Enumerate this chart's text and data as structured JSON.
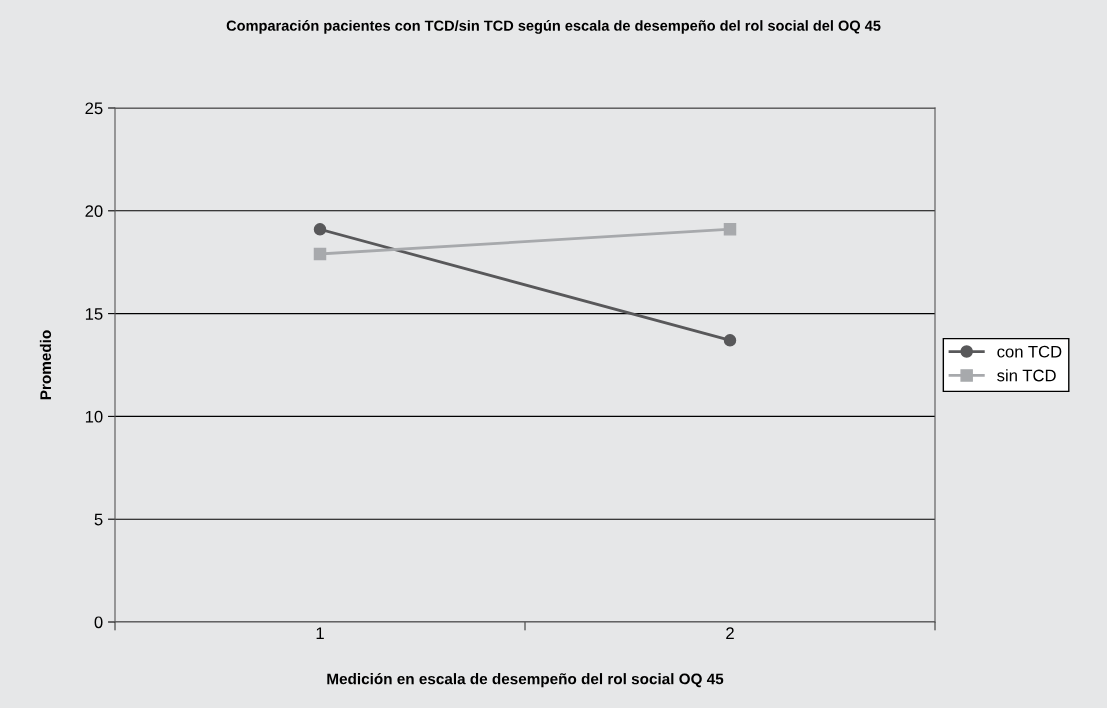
{
  "chart_data": {
    "type": "line",
    "title": "Comparación pacientes con TCD/sin TCD según escala de desempeño del rol social del OQ 45",
    "xlabel": "Medición en escala de desempeño del rol social OQ 45",
    "ylabel": "Promedio",
    "categories": [
      "1",
      "2"
    ],
    "series": [
      {
        "name": "con TCD",
        "color": "#58585a",
        "values": [
          19.1,
          13.7
        ],
        "marker": "circle"
      },
      {
        "name": "sin TCD",
        "color": "#a7a9ac",
        "values": [
          17.9,
          19.1
        ],
        "marker": "square"
      }
    ],
    "ylim": [
      0,
      25
    ],
    "yticks": [
      0,
      5,
      10,
      15,
      20,
      25
    ],
    "grid": "y",
    "legend": "right"
  }
}
